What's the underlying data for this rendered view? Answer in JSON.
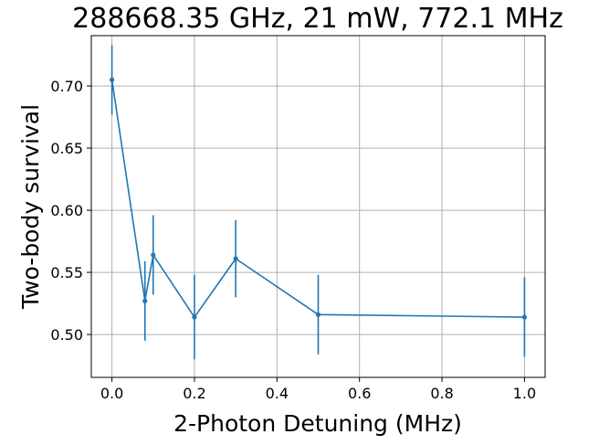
{
  "chart_data": {
    "type": "line",
    "title": "288668.35 GHz, 21 mW, 772.1 MHz",
    "xlabel": "2-Photon Detuning (MHz)",
    "ylabel": "Two-body survival",
    "xlim": [
      -0.05,
      1.05
    ],
    "ylim": [
      0.4655,
      0.7405
    ],
    "xticks": [
      0.0,
      0.2,
      0.4,
      0.6,
      0.8,
      1.0
    ],
    "xtick_labels": [
      "0.0",
      "0.2",
      "0.4",
      "0.6",
      "0.8",
      "1.0"
    ],
    "yticks": [
      0.5,
      0.55,
      0.6,
      0.65,
      0.7
    ],
    "ytick_labels": [
      "0.50",
      "0.55",
      "0.60",
      "0.65",
      "0.70"
    ],
    "grid": true,
    "legend": "none",
    "color": "#1f77b4",
    "series": [
      {
        "x": [
          0.0,
          0.08,
          0.1,
          0.2,
          0.3,
          0.5,
          1.0
        ],
        "y": [
          0.705,
          0.527,
          0.564,
          0.514,
          0.561,
          0.516,
          0.514
        ],
        "yerr": [
          0.028,
          0.032,
          0.032,
          0.034,
          0.031,
          0.032,
          0.032
        ]
      }
    ]
  }
}
